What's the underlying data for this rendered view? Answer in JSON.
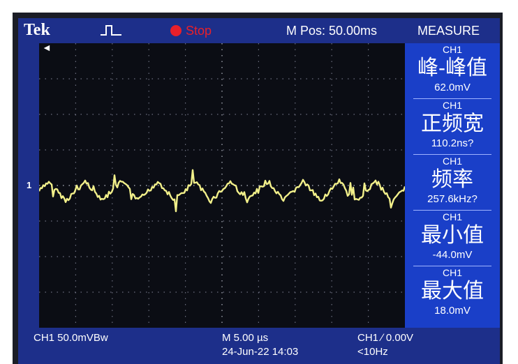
{
  "header": {
    "brand": "Tek",
    "status": "Stop",
    "mpos": "M Pos: 50.00ms",
    "measure_title": "MEASURE"
  },
  "markers": {
    "channel_marker": "1",
    "trigger_marker": "◄"
  },
  "measurements": [
    {
      "channel": "CH1",
      "label": "峰-峰值",
      "value": "62.0mV"
    },
    {
      "channel": "CH1",
      "label": "正频宽",
      "value": "110.2ns?"
    },
    {
      "channel": "CH1",
      "label": "频率",
      "value": "257.6kHz?"
    },
    {
      "channel": "CH1",
      "label": "最小值",
      "value": "-44.0mV"
    },
    {
      "channel": "CH1",
      "label": "最大值",
      "value": "18.0mV"
    }
  ],
  "footer": {
    "channel_scale": "CH1  50.0mVBw",
    "timebase": "M 5.00 µs",
    "datetime": "24-Jun-22 14:03",
    "trigger": "CH1  ∕  0.00V",
    "trigger_freq": "<10Hz"
  },
  "colors": {
    "trace": "#f2f08a",
    "screen_bg": "#1d2f8a",
    "grid_bg": "#0b0d14",
    "panel_bg": "#1a3fc8",
    "stop": "#e8202a"
  }
}
